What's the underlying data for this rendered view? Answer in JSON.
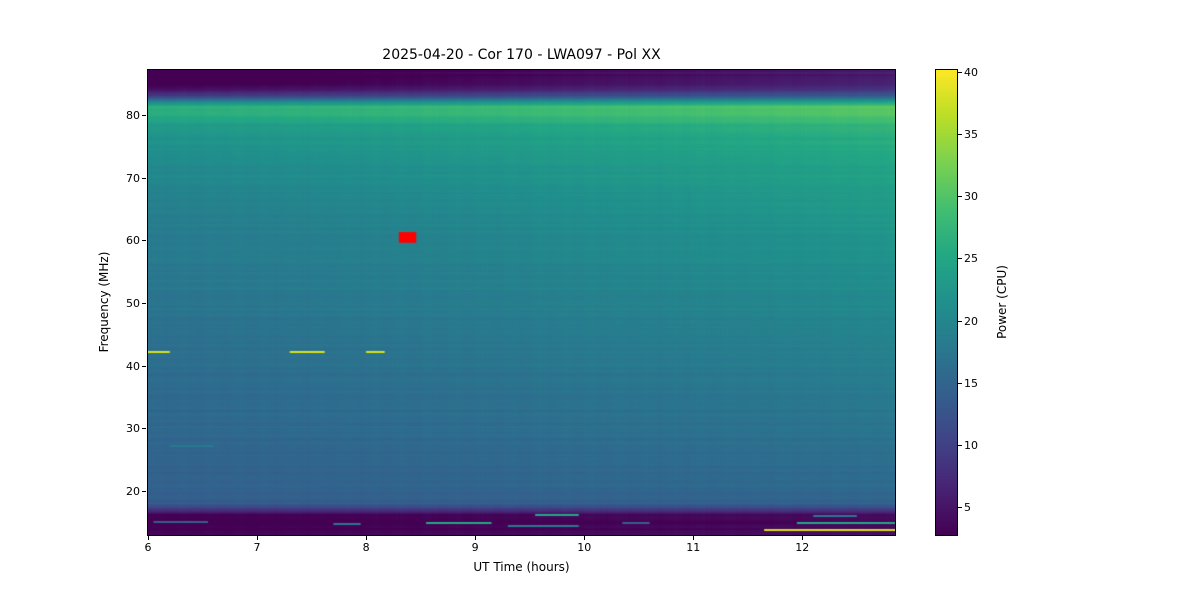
{
  "chart_data": {
    "type": "heatmap",
    "title": "2025-04-20 - Cor 170 - LWA097 - Pol XX",
    "xlabel": "UT Time (hours)",
    "ylabel": "Frequency (MHz)",
    "colorbar_label": "Power (CPU)",
    "colormap": "viridis",
    "x_range": [
      6.0,
      12.85
    ],
    "y_range": [
      13.0,
      87.3
    ],
    "x_ticks": [
      6,
      7,
      8,
      9,
      10,
      11,
      12
    ],
    "y_ticks": [
      20,
      30,
      40,
      50,
      60,
      70,
      80
    ],
    "colorbar_ticks": [
      5,
      10,
      15,
      20,
      25,
      30,
      35,
      40
    ],
    "vmin": 2.8,
    "vmax": 40.2,
    "freq_profile": [
      [
        13.0,
        3.4
      ],
      [
        14.0,
        2.9
      ],
      [
        15.3,
        2.7
      ],
      [
        16.2,
        3.5
      ],
      [
        17.0,
        9.0
      ],
      [
        18.0,
        14.0
      ],
      [
        20.0,
        14.8
      ],
      [
        24.0,
        15.3
      ],
      [
        28.0,
        15.8
      ],
      [
        32.0,
        16.2
      ],
      [
        36.0,
        16.6
      ],
      [
        40.0,
        17.0
      ],
      [
        44.0,
        17.5
      ],
      [
        48.0,
        18.1
      ],
      [
        52.0,
        18.6
      ],
      [
        56.0,
        19.1
      ],
      [
        60.0,
        19.6
      ],
      [
        64.0,
        20.3
      ],
      [
        68.0,
        21.1
      ],
      [
        72.0,
        22.0
      ],
      [
        75.0,
        22.8
      ],
      [
        77.0,
        23.6
      ],
      [
        78.5,
        24.8
      ],
      [
        79.5,
        26.6
      ],
      [
        80.5,
        27.6
      ],
      [
        81.5,
        27.9
      ],
      [
        82.3,
        21.0
      ],
      [
        83.0,
        12.5
      ],
      [
        84.0,
        6.5
      ],
      [
        85.0,
        4.0
      ],
      [
        86.0,
        3.2
      ],
      [
        87.3,
        3.0
      ]
    ],
    "time_gain": [
      [
        6.0,
        -1.5
      ],
      [
        7.0,
        -1.0
      ],
      [
        8.0,
        -0.5
      ],
      [
        9.0,
        0.1
      ],
      [
        10.0,
        0.9
      ],
      [
        11.0,
        1.5
      ],
      [
        12.0,
        2.2
      ],
      [
        12.85,
        2.8
      ]
    ],
    "events": {
      "flag_box": {
        "t0": 8.3,
        "t1": 8.46,
        "f0": 59.7,
        "f1": 61.4,
        "color": "#ff0000"
      },
      "rfi_lines": [
        {
          "freq": 42.2,
          "t0": 6.0,
          "t1": 6.2,
          "color": "#d8e219"
        },
        {
          "freq": 42.2,
          "t0": 7.3,
          "t1": 7.62,
          "color": "#d8e219"
        },
        {
          "freq": 42.2,
          "t0": 8.0,
          "t1": 8.17,
          "color": "#d8e219"
        }
      ],
      "bottom_streaks": [
        {
          "freq": 15.0,
          "t0": 6.05,
          "t1": 6.55,
          "color": "#355f8d"
        },
        {
          "freq": 27.2,
          "t0": 6.2,
          "t1": 6.6,
          "color": "#2a788e"
        },
        {
          "freq": 14.7,
          "t0": 7.7,
          "t1": 7.95,
          "color": "#2a788e"
        },
        {
          "freq": 14.9,
          "t0": 8.55,
          "t1": 9.15,
          "color": "#23a983"
        },
        {
          "freq": 14.4,
          "t0": 9.3,
          "t1": 9.95,
          "color": "#2a788e"
        },
        {
          "freq": 16.2,
          "t0": 9.55,
          "t1": 9.95,
          "color": "#23a983"
        },
        {
          "freq": 14.9,
          "t0": 10.35,
          "t1": 10.6,
          "color": "#355f8d"
        },
        {
          "freq": 13.8,
          "t0": 11.65,
          "t1": 12.85,
          "color": "#d8e219"
        },
        {
          "freq": 14.9,
          "t0": 11.95,
          "t1": 12.85,
          "color": "#23a983"
        },
        {
          "freq": 16.0,
          "t0": 12.1,
          "t1": 12.5,
          "color": "#2a788e"
        }
      ]
    }
  }
}
